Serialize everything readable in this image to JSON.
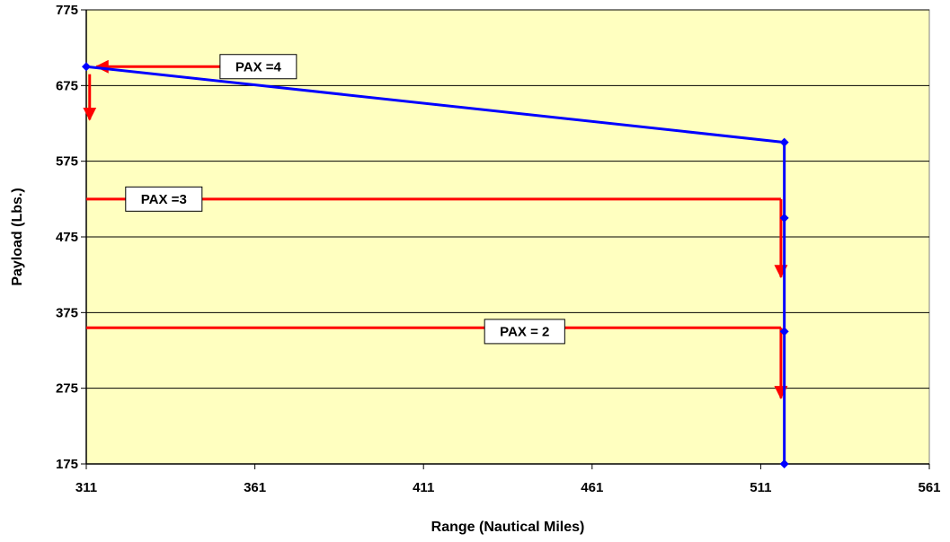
{
  "chart_data": {
    "type": "line",
    "title": "",
    "xlabel": "Range (Nautical Miles)",
    "ylabel": "Payload (Lbs.)",
    "xlim": [
      311,
      561
    ],
    "ylim": [
      175,
      775
    ],
    "xticks": [
      "311",
      "361",
      "411",
      "461",
      "511",
      "561"
    ],
    "yticks": [
      "175",
      "275",
      "375",
      "475",
      "575",
      "675",
      "775"
    ],
    "grid": "horizontal",
    "plot_background": "#FFFFC0",
    "series": [
      {
        "color": "#0000FF",
        "points": [
          [
            311,
            700
          ],
          [
            518,
            600
          ],
          [
            518,
            500
          ],
          [
            518,
            350
          ],
          [
            518,
            175
          ]
        ]
      }
    ],
    "annotations": [
      {
        "label": "PAX =4",
        "color": "#FF0000",
        "horizontal_arrow": {
          "from": [
            362,
            700
          ],
          "to": [
            314,
            700
          ]
        },
        "vertical_arrow": {
          "from": [
            312,
            690
          ],
          "to": [
            312,
            630
          ]
        },
        "label_at": [
          362,
          700
        ]
      },
      {
        "label": "PAX =3",
        "color": "#FF0000",
        "line": [
          [
            311,
            525
          ],
          [
            517,
            525
          ]
        ],
        "vertical_arrow": {
          "from": [
            517,
            525
          ],
          "to": [
            517,
            422
          ]
        },
        "label_at": [
          334,
          525
        ]
      },
      {
        "label": "PAX = 2",
        "color": "#FF0000",
        "line": [
          [
            311,
            355
          ],
          [
            517,
            355
          ]
        ],
        "vertical_arrow": {
          "from": [
            517,
            355
          ],
          "to": [
            517,
            262
          ]
        },
        "label_at": [
          441,
          350
        ]
      }
    ]
  }
}
